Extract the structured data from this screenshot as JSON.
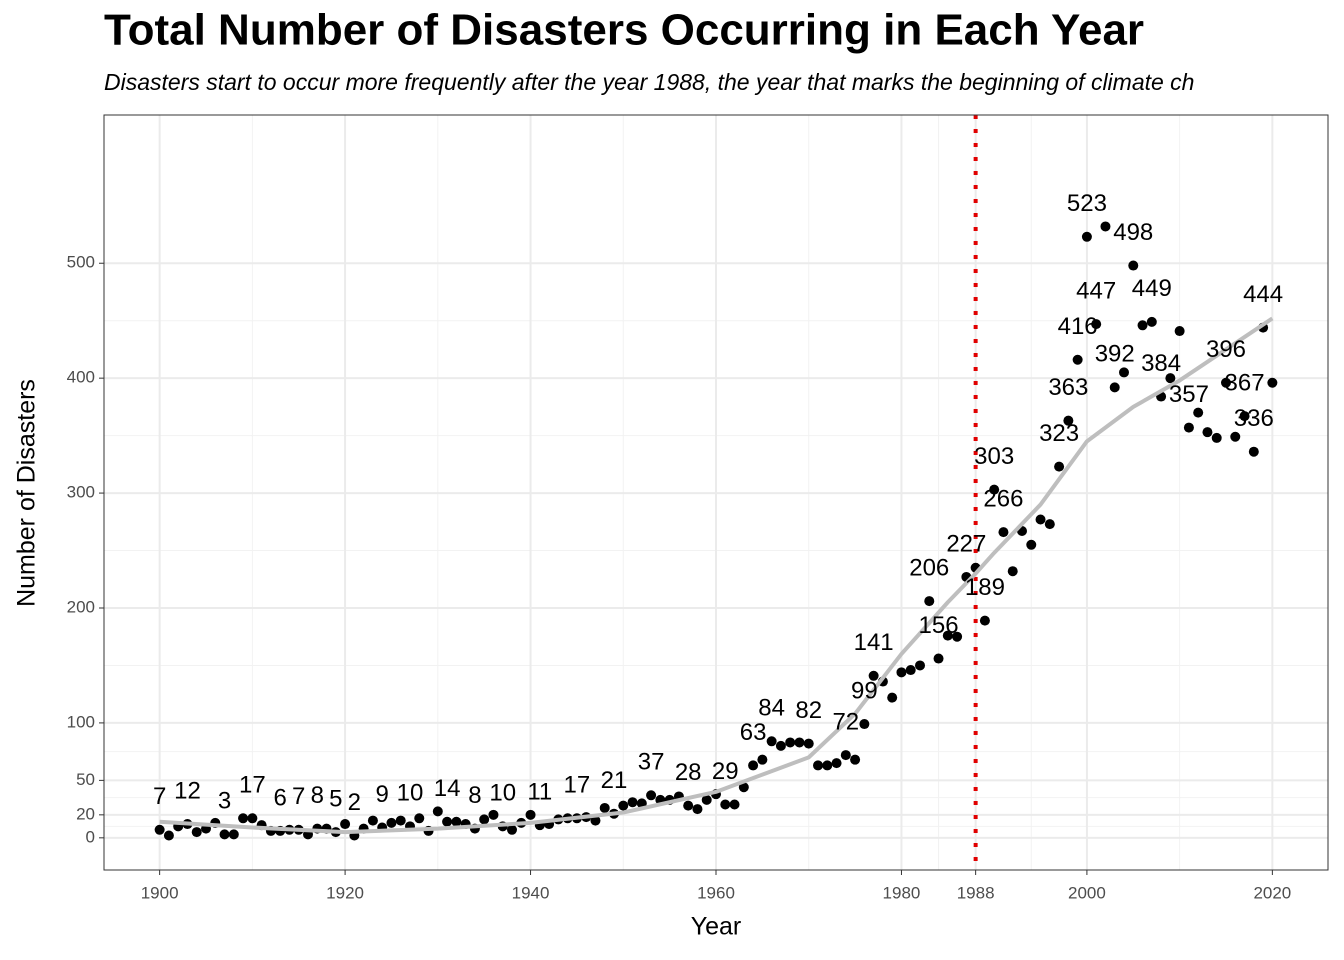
{
  "chart_data": {
    "type": "scatter",
    "title": "Total Number of Disasters Occurring in Each Year",
    "subtitle": "Disasters start to occur more frequently after the year 1988, the year that marks the beginning of climate ch",
    "x_label": "Year",
    "y_label": "Number of Disasters",
    "xlim": [
      1894,
      2026
    ],
    "ylim": [
      -28,
      629
    ],
    "xticks": [
      1900,
      1920,
      1940,
      1960,
      1980,
      1988,
      2000,
      2020
    ],
    "yticks": [
      0,
      20,
      50,
      100,
      200,
      300,
      400,
      500
    ],
    "grid": true,
    "vline": {
      "x": 1988,
      "color": "#e00000"
    },
    "x": [
      1900,
      1901,
      1902,
      1903,
      1904,
      1905,
      1906,
      1907,
      1908,
      1909,
      1910,
      1911,
      1912,
      1913,
      1914,
      1915,
      1916,
      1917,
      1918,
      1919,
      1920,
      1921,
      1922,
      1923,
      1924,
      1925,
      1926,
      1927,
      1928,
      1929,
      1930,
      1931,
      1932,
      1933,
      1934,
      1935,
      1936,
      1937,
      1938,
      1939,
      1940,
      1941,
      1942,
      1943,
      1944,
      1945,
      1946,
      1947,
      1948,
      1949,
      1950,
      1951,
      1952,
      1953,
      1954,
      1955,
      1956,
      1957,
      1958,
      1959,
      1960,
      1961,
      1962,
      1963,
      1964,
      1965,
      1966,
      1967,
      1968,
      1969,
      1970,
      1971,
      1972,
      1973,
      1974,
      1975,
      1976,
      1977,
      1978,
      1979,
      1980,
      1981,
      1982,
      1983,
      1984,
      1985,
      1986,
      1987,
      1988,
      1989,
      1990,
      1991,
      1992,
      1993,
      1994,
      1995,
      1996,
      1997,
      1998,
      1999,
      2000,
      2001,
      2002,
      2003,
      2004,
      2005,
      2006,
      2007,
      2008,
      2009,
      2010,
      2011,
      2012,
      2013,
      2014,
      2015,
      2016,
      2017,
      2018,
      2019,
      2020
    ],
    "values": [
      7,
      2,
      10,
      12,
      5,
      8,
      13,
      3,
      3,
      17,
      17,
      11,
      6,
      6,
      7,
      7,
      3,
      8,
      8,
      5,
      12,
      2,
      8,
      15,
      9,
      13,
      15,
      10,
      17,
      6,
      23,
      14,
      14,
      12,
      8,
      16,
      20,
      10,
      7,
      13,
      20,
      11,
      12,
      16,
      17,
      17,
      18,
      15,
      26,
      21,
      28,
      31,
      30,
      37,
      33,
      33,
      36,
      28,
      25,
      33,
      38,
      29,
      29,
      44,
      63,
      68,
      84,
      80,
      83,
      83,
      82,
      63,
      63,
      65,
      72,
      68,
      99,
      141,
      136,
      122,
      144,
      146,
      150,
      206,
      156,
      176,
      175,
      227,
      235,
      189,
      303,
      266,
      232,
      267,
      255,
      277,
      273,
      323,
      363,
      416,
      523,
      447,
      532,
      392,
      405,
      498,
      446,
      449,
      384,
      400,
      441,
      357,
      370,
      353,
      348,
      396,
      349,
      367,
      336,
      444,
      396
    ],
    "value_labels": [
      "7",
      null,
      null,
      "12",
      null,
      null,
      null,
      "3",
      null,
      null,
      "17",
      null,
      null,
      "6",
      null,
      "7",
      null,
      "8",
      null,
      "5",
      null,
      "2",
      null,
      null,
      "9",
      null,
      null,
      "10",
      null,
      null,
      null,
      "14",
      null,
      null,
      "8",
      null,
      null,
      "10",
      null,
      null,
      null,
      "11",
      null,
      null,
      null,
      "17",
      null,
      null,
      null,
      "21",
      null,
      null,
      null,
      "37",
      null,
      null,
      null,
      "28",
      null,
      null,
      null,
      "29",
      null,
      null,
      "63",
      null,
      "84",
      null,
      null,
      null,
      "82",
      null,
      null,
      null,
      "72",
      null,
      "99",
      "141",
      null,
      null,
      null,
      null,
      null,
      "206",
      "156",
      null,
      null,
      "227",
      null,
      "189",
      "303",
      "266",
      null,
      null,
      null,
      null,
      null,
      "323",
      "363",
      "416",
      "523",
      "447",
      null,
      "392",
      null,
      "498",
      null,
      "449",
      "384",
      null,
      null,
      "357",
      null,
      null,
      null,
      "396",
      null,
      "367",
      "336",
      "444",
      null
    ],
    "color": "#000000",
    "trend": {
      "x": [
        1900,
        1910,
        1920,
        1930,
        1940,
        1950,
        1960,
        1965,
        1970,
        1975,
        1980,
        1985,
        1988,
        1990,
        1995,
        2000,
        2005,
        2010,
        2015,
        2020
      ],
      "values": [
        14,
        9,
        5,
        8,
        13,
        22,
        40,
        55,
        70,
        108,
        160,
        205,
        230,
        248,
        290,
        345,
        375,
        398,
        425,
        452
      ],
      "color": "#bebebe"
    }
  }
}
